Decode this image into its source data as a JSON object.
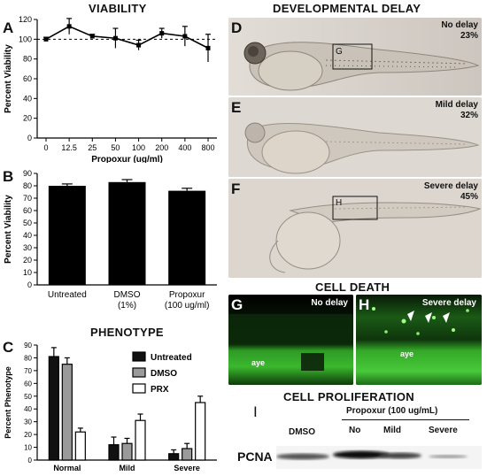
{
  "titles": {
    "viability": "VIABILITY",
    "phenotype": "PHENOTYPE",
    "developmental_delay": "DEVELOPMENTAL DELAY",
    "cell_death": "CELL DEATH",
    "cell_proliferation": "CELL PROLIFERATION"
  },
  "panel_letters": {
    "a": "A",
    "b": "B",
    "c": "C",
    "d": "D",
    "e": "E",
    "f": "F",
    "g": "G",
    "h": "H",
    "i": "I"
  },
  "chart_data": [
    {
      "type": "line",
      "panel": "A",
      "categories": [
        "0",
        "12.5",
        "25",
        "50",
        "100",
        "200",
        "400",
        "800"
      ],
      "values": [
        100,
        113,
        103,
        101,
        94,
        106,
        103,
        91
      ],
      "errors": [
        2,
        8,
        2,
        10,
        5,
        5,
        10,
        14
      ],
      "reference_line": 100,
      "ylabel": "Percent Viability",
      "xlabel": "Propoxur (ug/ml)",
      "ylim": [
        0,
        120
      ],
      "yticks": [
        0,
        20,
        40,
        60,
        80,
        100,
        120
      ]
    },
    {
      "type": "bar",
      "panel": "B",
      "categories": [
        [
          "Untreated"
        ],
        [
          "DMSO",
          "(1%)"
        ],
        [
          "Propoxur",
          "(100 ug/ml)"
        ]
      ],
      "values": [
        80,
        83,
        76
      ],
      "errors": [
        1.5,
        2,
        2
      ],
      "ylabel": "Percent Viability",
      "ylim": [
        0,
        90
      ],
      "yticks": [
        0,
        10,
        20,
        30,
        40,
        50,
        60,
        70,
        80,
        90
      ]
    },
    {
      "type": "bar",
      "panel": "C",
      "categories": [
        "Normal",
        "Mild",
        "Severe"
      ],
      "series": [
        {
          "name": "Untreated",
          "color": "#111111",
          "values": [
            81,
            12,
            5
          ],
          "errors": [
            7,
            6,
            3
          ]
        },
        {
          "name": "DMSO",
          "color": "#9a9a9a",
          "values": [
            75,
            13,
            9
          ],
          "errors": [
            5,
            4,
            4
          ]
        },
        {
          "name": "PRX",
          "color": "#ffffff",
          "values": [
            22,
            31,
            45
          ],
          "errors": [
            3,
            5,
            5
          ]
        }
      ],
      "ylabel": "Percent Phenotype",
      "ylim": [
        0,
        90
      ],
      "yticks": [
        0,
        10,
        20,
        30,
        40,
        50,
        60,
        70,
        80,
        90
      ],
      "legend": "top-right"
    }
  ],
  "delay": {
    "d": {
      "line1": "No delay",
      "line2": "23%",
      "box": "G"
    },
    "e": {
      "line1": "Mild delay",
      "line2": "32%"
    },
    "f": {
      "line1": "Severe delay",
      "line2": "45%",
      "box": "H"
    }
  },
  "death": {
    "g": {
      "label": "No delay",
      "aye": "aye"
    },
    "h": {
      "label": "Severe delay",
      "aye": "aye"
    }
  },
  "blot": {
    "header": "Propoxur (100 ug/mL)",
    "lanes": [
      "DMSO",
      "No",
      "Mild",
      "Severe"
    ],
    "row_label": "PCNA"
  }
}
